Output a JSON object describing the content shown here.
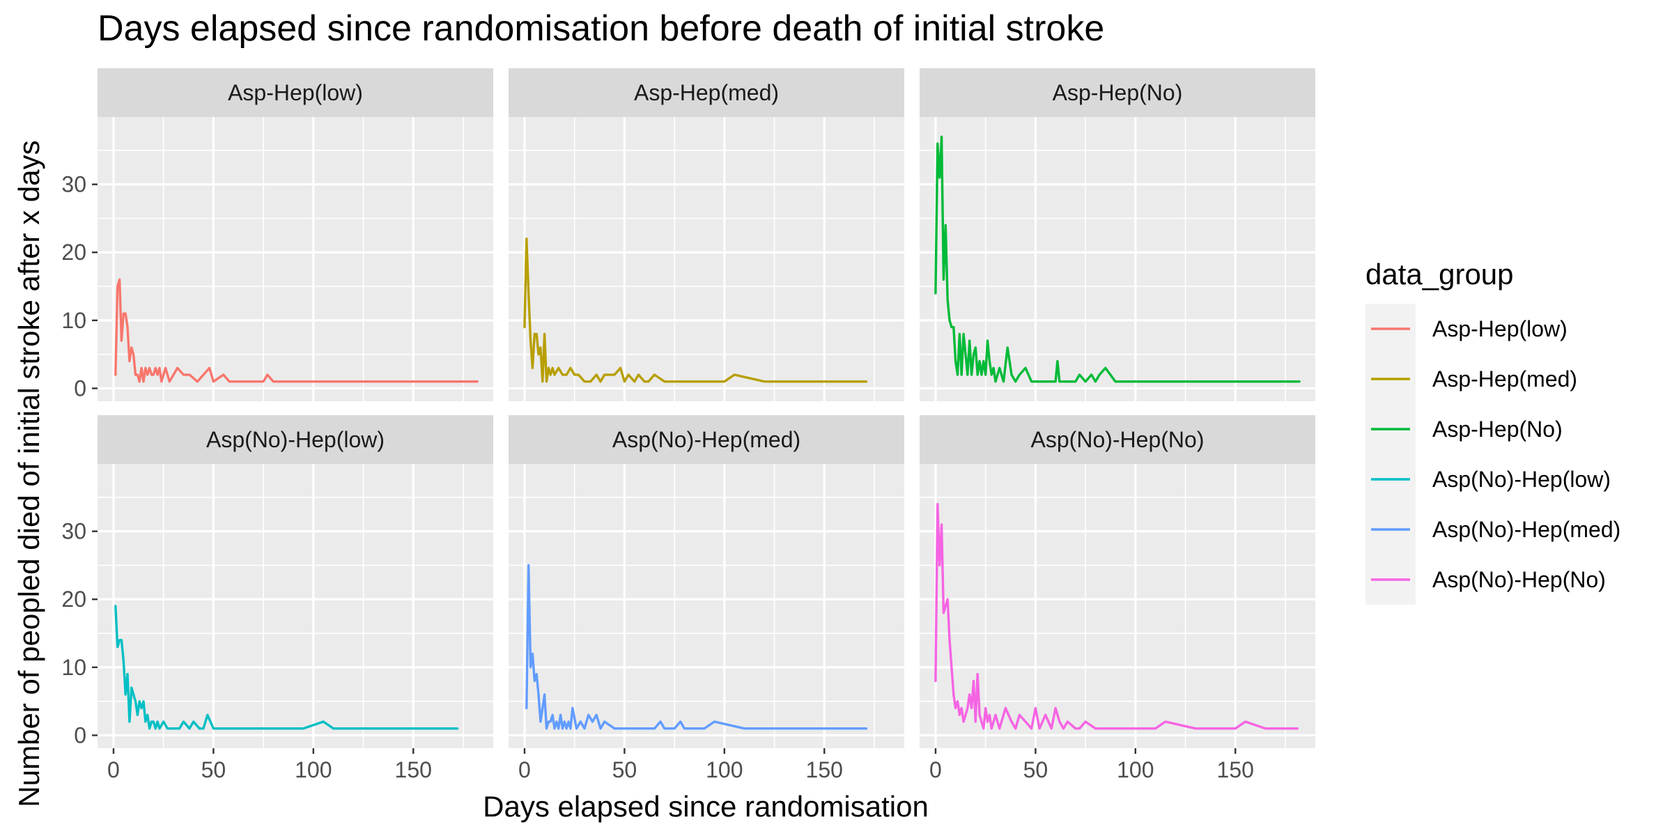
{
  "chart_data": {
    "type": "line",
    "title": "Days elapsed since randomisation before death of initial stroke",
    "xlabel": "Days elapsed since randomisation",
    "ylabel": "Number of peopled died of initial stroke after x days",
    "xlim": [
      -8,
      190
    ],
    "ylim": [
      -1.9,
      39.9
    ],
    "x_ticks": [
      0,
      50,
      100,
      150
    ],
    "x_tick_labels": [
      "0",
      "50",
      "100",
      "150"
    ],
    "y_ticks": [
      0,
      10,
      20,
      30
    ],
    "y_tick_labels": [
      "0",
      "10",
      "20",
      "30"
    ],
    "grid": true,
    "legend": {
      "title": "data_group",
      "position": "right",
      "entries": [
        "Asp-Hep(low)",
        "Asp-Hep(med)",
        "Asp-Hep(No)",
        "Asp(No)-Hep(low)",
        "Asp(No)-Hep(med)",
        "Asp(No)-Hep(No)"
      ]
    },
    "facets": [
      {
        "name": "Asp-Hep(low)",
        "color": "#F8766D",
        "x": [
          1,
          2,
          3,
          4,
          5,
          6,
          7,
          8,
          9,
          10,
          11,
          12,
          13,
          14,
          15,
          16,
          17,
          18,
          19,
          20,
          21,
          22,
          23,
          24,
          26,
          28,
          30,
          32,
          35,
          38,
          42,
          45,
          48,
          50,
          55,
          58,
          60,
          75,
          77,
          80,
          90,
          100,
          120,
          140,
          160,
          182
        ],
        "y": [
          2,
          15,
          16,
          7,
          11,
          11,
          9,
          4,
          6,
          5,
          2,
          2,
          1,
          3,
          1,
          3,
          2,
          3,
          2,
          2,
          3,
          2,
          3,
          1,
          3,
          1,
          2,
          3,
          2,
          2,
          1,
          2,
          3,
          1,
          2,
          1,
          1,
          1,
          2,
          1,
          1,
          1,
          1,
          1,
          1,
          1
        ]
      },
      {
        "name": "Asp-Hep(med)",
        "color": "#B79F00",
        "x": [
          0,
          1,
          2,
          3,
          4,
          5,
          6,
          7,
          8,
          9,
          10,
          11,
          12,
          13,
          14,
          15,
          17,
          19,
          21,
          23,
          25,
          27,
          30,
          33,
          36,
          38,
          40,
          42,
          45,
          48,
          50,
          52,
          55,
          57,
          60,
          62,
          65,
          70,
          80,
          90,
          100,
          105,
          120,
          150,
          171
        ],
        "y": [
          9,
          22,
          14,
          7,
          3,
          8,
          8,
          5,
          6,
          1,
          8,
          1,
          3,
          2,
          3,
          2,
          3,
          2,
          2,
          3,
          2,
          2,
          1,
          1,
          2,
          1,
          2,
          2,
          2,
          3,
          1,
          2,
          1,
          2,
          1,
          1,
          2,
          1,
          1,
          1,
          1,
          2,
          1,
          1,
          1
        ]
      },
      {
        "name": "Asp-Hep(No)",
        "color": "#00BA38",
        "x": [
          0,
          1,
          2,
          3,
          4,
          5,
          6,
          7,
          8,
          9,
          10,
          11,
          12,
          13,
          14,
          15,
          16,
          17,
          18,
          19,
          20,
          21,
          22,
          23,
          24,
          25,
          26,
          27,
          28,
          29,
          30,
          32,
          34,
          36,
          38,
          40,
          42,
          45,
          48,
          50,
          55,
          60,
          61,
          62,
          65,
          70,
          72,
          75,
          78,
          80,
          82,
          85,
          90,
          100,
          120,
          140,
          160,
          182
        ],
        "y": [
          14,
          36,
          31,
          37,
          16,
          24,
          13,
          10,
          9,
          9,
          4,
          2,
          8,
          2,
          8,
          5,
          2,
          7,
          2,
          5,
          6,
          2,
          4,
          2,
          4,
          2,
          7,
          4,
          2,
          3,
          1,
          3,
          1,
          6,
          2,
          1,
          2,
          3,
          1,
          1,
          1,
          1,
          4,
          1,
          1,
          1,
          2,
          1,
          2,
          1,
          2,
          3,
          1,
          1,
          1,
          1,
          1,
          1
        ]
      },
      {
        "name": "Asp(No)-Hep(low)",
        "color": "#00BFC4",
        "x": [
          1,
          2,
          3,
          4,
          5,
          6,
          7,
          8,
          9,
          10,
          11,
          12,
          13,
          14,
          15,
          16,
          17,
          18,
          19,
          20,
          21,
          22,
          23,
          25,
          27,
          30,
          33,
          35,
          38,
          40,
          43,
          45,
          47,
          50,
          55,
          60,
          80,
          95,
          105,
          110,
          140,
          172
        ],
        "y": [
          19,
          13,
          14,
          14,
          11,
          6,
          9,
          2,
          7,
          6,
          5,
          3,
          5,
          4,
          5,
          2,
          3,
          1,
          2,
          2,
          1,
          2,
          1,
          2,
          1,
          1,
          1,
          2,
          1,
          2,
          1,
          1,
          3,
          1,
          1,
          1,
          1,
          1,
          2,
          1,
          1,
          1
        ]
      },
      {
        "name": "Asp(No)-Hep(med)",
        "color": "#619CFF",
        "x": [
          1,
          2,
          3,
          4,
          5,
          6,
          7,
          8,
          9,
          10,
          11,
          12,
          13,
          14,
          15,
          16,
          17,
          18,
          19,
          20,
          21,
          22,
          23,
          24,
          26,
          28,
          30,
          32,
          34,
          36,
          38,
          40,
          45,
          48,
          50,
          55,
          60,
          65,
          68,
          70,
          75,
          78,
          80,
          85,
          90,
          95,
          110,
          130,
          150,
          171
        ],
        "y": [
          4,
          25,
          10,
          12,
          8,
          9,
          6,
          2,
          4,
          6,
          1,
          2,
          2,
          3,
          1,
          2,
          1,
          3,
          1,
          2,
          1,
          2,
          1,
          4,
          1,
          2,
          1,
          3,
          2,
          3,
          1,
          2,
          1,
          1,
          1,
          1,
          1,
          1,
          2,
          1,
          1,
          2,
          1,
          1,
          1,
          2,
          1,
          1,
          1,
          1
        ]
      },
      {
        "name": "Asp(No)-Hep(No)",
        "color": "#F564E3",
        "x": [
          0,
          1,
          2,
          3,
          4,
          5,
          6,
          7,
          8,
          9,
          10,
          11,
          12,
          13,
          14,
          15,
          16,
          17,
          18,
          19,
          20,
          21,
          22,
          23,
          24,
          25,
          26,
          27,
          28,
          30,
          32,
          35,
          38,
          40,
          42,
          45,
          48,
          50,
          52,
          55,
          58,
          60,
          62,
          64,
          66,
          70,
          72,
          75,
          80,
          90,
          100,
          110,
          115,
          130,
          150,
          155,
          165,
          181
        ],
        "y": [
          8,
          34,
          25,
          31,
          18,
          19,
          20,
          14,
          10,
          6,
          4,
          5,
          3,
          4,
          2,
          3,
          4,
          6,
          4,
          8,
          2,
          9,
          3,
          2,
          1,
          4,
          2,
          3,
          1,
          3,
          1,
          4,
          2,
          1,
          3,
          2,
          1,
          4,
          1,
          3,
          1,
          4,
          2,
          1,
          2,
          1,
          1,
          2,
          1,
          1,
          1,
          1,
          2,
          1,
          1,
          2,
          1,
          1
        ]
      }
    ]
  }
}
